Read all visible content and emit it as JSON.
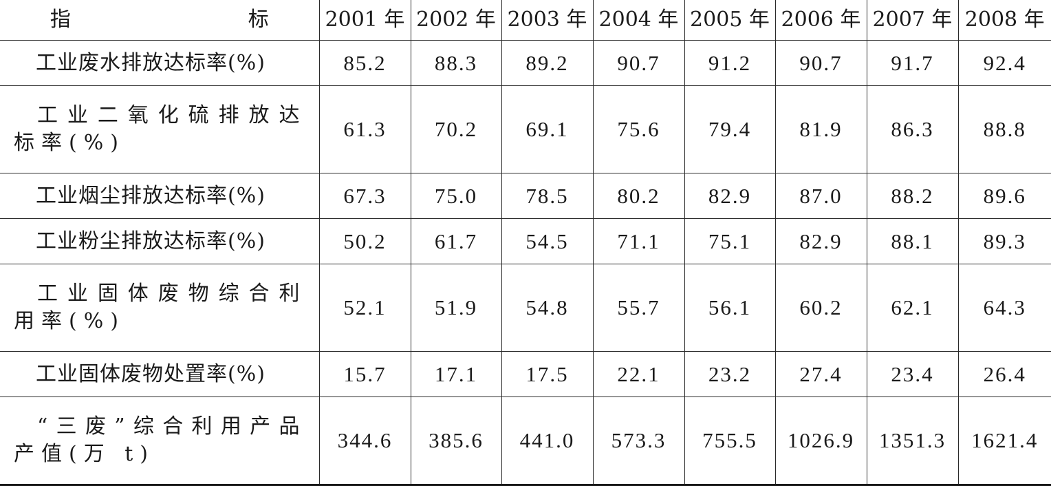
{
  "table": {
    "header": {
      "indicator": "指　　标",
      "years": [
        "2001 年",
        "2002 年",
        "2003 年",
        "2004 年",
        "2005 年",
        "2006 年",
        "2007 年",
        "2008 年"
      ]
    },
    "rows": [
      {
        "label": "工业废水排放达标率(%)",
        "values": [
          "85.2",
          "88.3",
          "89.2",
          "90.7",
          "91.2",
          "90.7",
          "91.7",
          "92.4"
        ]
      },
      {
        "label": "工业二氧化硫排放达标率(%)",
        "values": [
          "61.3",
          "70.2",
          "69.1",
          "75.6",
          "79.4",
          "81.9",
          "86.3",
          "88.8"
        ]
      },
      {
        "label": "工业烟尘排放达标率(%)",
        "values": [
          "67.3",
          "75.0",
          "78.5",
          "80.2",
          "82.9",
          "87.0",
          "88.2",
          "89.6"
        ]
      },
      {
        "label": "工业粉尘排放达标率(%)",
        "values": [
          "50.2",
          "61.7",
          "54.5",
          "71.1",
          "75.1",
          "82.9",
          "88.1",
          "89.3"
        ]
      },
      {
        "label": "工业固体废物综合利用率(%)",
        "values": [
          "52.1",
          "51.9",
          "54.8",
          "55.7",
          "56.1",
          "60.2",
          "62.1",
          "64.3"
        ]
      },
      {
        "label": "工业固体废物处置率(%)",
        "values": [
          "15.7",
          "17.1",
          "17.5",
          "22.1",
          "23.2",
          "27.4",
          "23.4",
          "26.4"
        ]
      },
      {
        "label": "“三废”综合利用产品产值(万 t)",
        "values": [
          "344.6",
          "385.6",
          "441.0",
          "573.3",
          "755.5",
          "1026.9",
          "1351.3",
          "1621.4"
        ]
      }
    ]
  }
}
